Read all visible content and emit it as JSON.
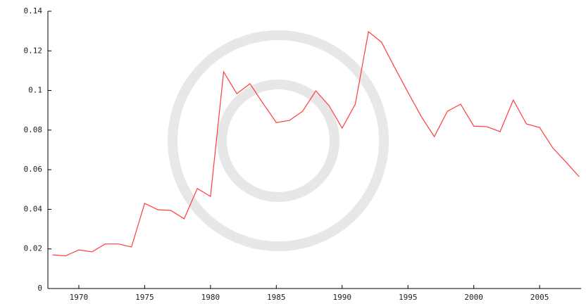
{
  "chart_data": {
    "type": "line",
    "color": "#ff3b3b",
    "x": [
      1968,
      1969,
      1970,
      1971,
      1972,
      1973,
      1974,
      1975,
      1976,
      1977,
      1978,
      1979,
      1980,
      1981,
      1982,
      1983,
      1984,
      1985,
      1986,
      1987,
      1988,
      1989,
      1990,
      1991,
      1992,
      1993,
      1994,
      1995,
      1996,
      1997,
      1998,
      1999,
      2000,
      2001,
      2002,
      2003,
      2004,
      2005,
      2006,
      2007,
      2008
    ],
    "values": [
      0.017,
      0.0165,
      0.0195,
      0.0185,
      0.0225,
      0.0225,
      0.021,
      0.043,
      0.0398,
      0.0394,
      0.0352,
      0.0505,
      0.0465,
      0.1094,
      0.0984,
      0.1034,
      0.0934,
      0.0838,
      0.0849,
      0.0895,
      0.0998,
      0.0924,
      0.081,
      0.0931,
      0.1297,
      0.1243,
      0.1115,
      0.0991,
      0.087,
      0.0767,
      0.0895,
      0.0931,
      0.082,
      0.0817,
      0.0792,
      0.0952,
      0.0831,
      0.0813,
      0.071,
      0.0639,
      0.0565
    ],
    "xlim": [
      1967.65,
      2008.15
    ],
    "xticks": [
      1970,
      1975,
      1980,
      1985,
      1990,
      1995,
      2000,
      2005
    ],
    "ylim": [
      0,
      0.14
    ],
    "yticks": [
      0,
      0.02,
      0.04,
      0.06,
      0.08,
      0.1,
      0.12,
      0.14
    ]
  }
}
